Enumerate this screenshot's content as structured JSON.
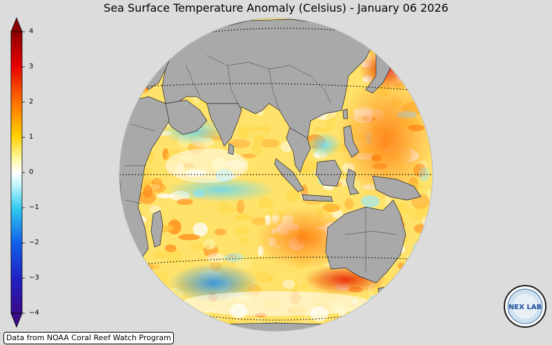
{
  "title": "Sea Surface Temperature Anomaly (Celsius) - January 06 2026",
  "colorbar": {
    "ticks": [
      "4",
      "3",
      "2",
      "1",
      "0",
      "−1",
      "−2",
      "−3",
      "−4"
    ],
    "colors": [
      "#3a0a8a",
      "#1f4fe0",
      "#20b8f0",
      "#a8f0f8",
      "#ffffff",
      "#fff070",
      "#ffc000",
      "#ff7000",
      "#e80000",
      "#7a0000"
    ]
  },
  "source_label": "Data from NOAA Coral Reef Watch Program",
  "logo_text": "NEX LAB",
  "map": {
    "ocean_warm": "#ffd94a",
    "ocean_hot": "#ff8a1a",
    "ocean_cool": "#9fe8f5",
    "land": "#a9a9a9"
  }
}
